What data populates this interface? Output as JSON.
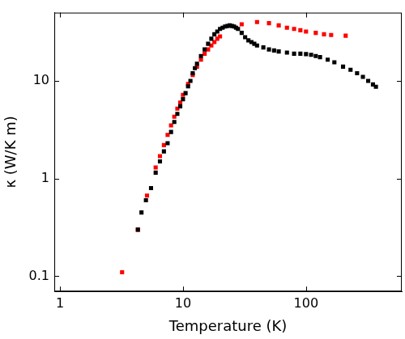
{
  "chart_data": {
    "type": "scatter",
    "x_label": "Temperature (K)",
    "y_label": "κ (W/K m)",
    "log": true,
    "grid": false,
    "xlim": [
      0.9,
      600
    ],
    "ylim": [
      0.07,
      50
    ],
    "xticks": [
      1,
      10,
      100
    ],
    "yticks": [
      0.1,
      1,
      10
    ],
    "series": [
      {
        "color": "#000000",
        "marker": "square",
        "x": [
          4.3,
          4.6,
          5,
          5.5,
          6,
          6.5,
          7,
          7.5,
          8,
          8.5,
          9,
          9.5,
          10,
          10.5,
          11,
          11.5,
          12,
          12.5,
          13,
          14,
          15,
          16,
          17,
          18,
          19,
          20,
          21,
          22,
          23,
          24,
          25,
          26,
          27,
          28,
          30,
          32,
          34,
          36,
          38,
          40,
          45,
          50,
          55,
          60,
          70,
          80,
          90,
          100,
          110,
          120,
          130,
          150,
          170,
          200,
          230,
          260,
          290,
          320,
          350,
          370
        ],
        "values": [
          0.3,
          0.45,
          0.6,
          0.8,
          1.15,
          1.5,
          1.9,
          2.3,
          3,
          3.8,
          4.6,
          5.5,
          6.5,
          7.5,
          8.8,
          10,
          12,
          13.5,
          15,
          18,
          21,
          24,
          27,
          30,
          32,
          34,
          35,
          36,
          36.5,
          37,
          36.5,
          36,
          35,
          34,
          31,
          28,
          26,
          25,
          24,
          23,
          22,
          21,
          20.5,
          20,
          19.5,
          19,
          19,
          18.8,
          18.5,
          18,
          17.5,
          16.5,
          15.5,
          14,
          13,
          12,
          11,
          10,
          9.2,
          8.7
        ]
      },
      {
        "color": "#ff0000",
        "marker": "square",
        "x": [
          3.2,
          4.3,
          5.1,
          6,
          6.5,
          7,
          7.5,
          8,
          8.5,
          9,
          9.5,
          10,
          11,
          12,
          13,
          14,
          15,
          16,
          17,
          18,
          19,
          20,
          30,
          40,
          50,
          60,
          70,
          80,
          90,
          100,
          120,
          140,
          160,
          210
        ],
        "values": [
          0.11,
          0.3,
          0.67,
          1.3,
          1.7,
          2.2,
          2.8,
          3.5,
          4.3,
          5.2,
          6,
          7.2,
          9.3,
          11.5,
          14,
          16.5,
          19,
          21,
          23,
          25,
          27,
          28.5,
          38,
          40,
          39,
          37,
          35,
          34,
          33,
          32,
          31,
          30,
          29.5,
          29
        ]
      }
    ]
  }
}
